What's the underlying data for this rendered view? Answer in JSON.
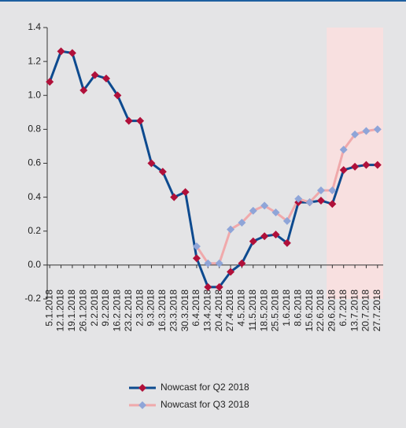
{
  "chart_data": {
    "type": "line",
    "categories": [
      "5.1.2018",
      "12.1.2018",
      "19.1.2018",
      "26.1.2018",
      "2.2.2018",
      "9.2.2018",
      "16.2.2018",
      "23.2.2018",
      "2.3.2018",
      "9.3.2018",
      "16.3.2018",
      "23.3.2018",
      "30.3.2018",
      "6.4.2018",
      "13.4.2018",
      "20.4.2018",
      "27.4.2018",
      "4.5.2018",
      "11.5.2018",
      "18.5.2018",
      "25.5.2018",
      "1.6.2018",
      "8.6.2018",
      "15.6.2018",
      "22.6.2018",
      "29.6.2018",
      "6.7.2018",
      "13.7.2018",
      "20.7.2018",
      "27.7.2018"
    ],
    "series": [
      {
        "name": "Nowcast for Q2 2018",
        "color": "#0d4a8f",
        "marker_color": "#b0103a",
        "values": [
          1.08,
          1.26,
          1.25,
          1.03,
          1.12,
          1.1,
          1.0,
          0.85,
          0.85,
          0.6,
          0.55,
          0.4,
          0.43,
          0.04,
          -0.13,
          -0.13,
          -0.04,
          0.01,
          0.14,
          0.17,
          0.18,
          0.13,
          0.37,
          0.37,
          0.38,
          0.36,
          0.56,
          0.58,
          0.59,
          0.59
        ]
      },
      {
        "name": "Nowcast for Q3 2018",
        "color": "#f0a9ab",
        "marker_color": "#8fa5d8",
        "values": [
          null,
          null,
          null,
          null,
          null,
          null,
          null,
          null,
          null,
          null,
          null,
          null,
          null,
          0.11,
          0.01,
          0.01,
          0.21,
          0.25,
          0.32,
          0.35,
          0.31,
          0.26,
          0.39,
          0.37,
          0.44,
          0.44,
          0.68,
          0.77,
          0.79,
          0.8
        ]
      }
    ],
    "ylim": [
      -0.2,
      1.4
    ],
    "yticks": [
      {
        "value": -0.2,
        "label": "-0.2"
      },
      {
        "value": 0,
        "label": "0.0"
      },
      0.2,
      0.4,
      0.6,
      0.8,
      {
        "value": 1,
        "label": "1.0"
      },
      1.2,
      1.4
    ],
    "highlight": {
      "from": "29.6.2018",
      "to": "27.7.2018",
      "color": "#f8e0e0"
    },
    "legend": "bottom"
  }
}
